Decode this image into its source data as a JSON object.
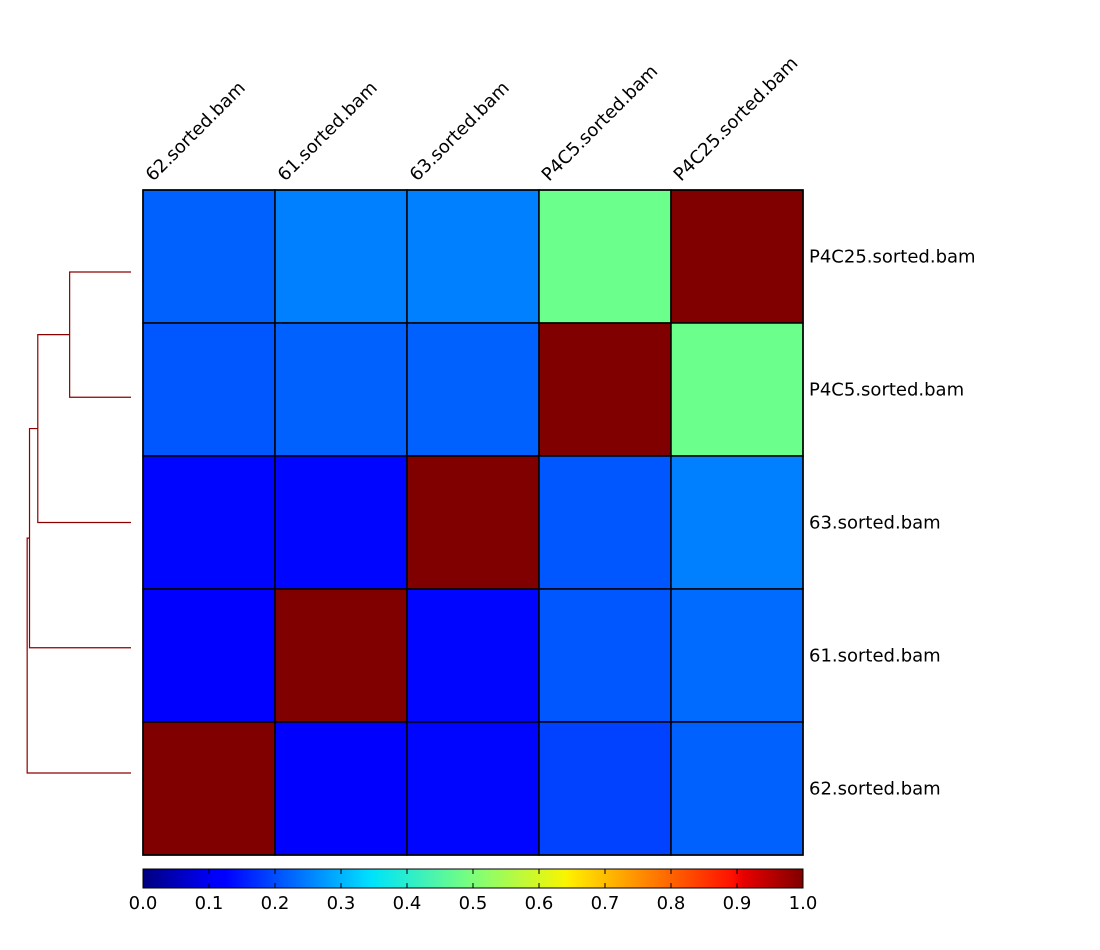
{
  "chart_data": {
    "type": "heatmap",
    "title": "",
    "columns": [
      "62.sorted.bam",
      "61.sorted.bam",
      "63.sorted.bam",
      "P4C5.sorted.bam",
      "P4C25.sorted.bam"
    ],
    "rows": [
      "P4C25.sorted.bam",
      "P4C5.sorted.bam",
      "63.sorted.bam",
      "61.sorted.bam",
      "62.sorted.bam"
    ],
    "values": [
      [
        0.22,
        0.25,
        0.25,
        0.48,
        1.0
      ],
      [
        0.21,
        0.22,
        0.22,
        1.0,
        0.48
      ],
      [
        0.13,
        0.13,
        1.0,
        0.21,
        0.25
      ],
      [
        0.11,
        1.0,
        0.13,
        0.21,
        0.23
      ],
      [
        1.0,
        0.11,
        0.13,
        0.19,
        0.22
      ]
    ],
    "colorscale": "jet",
    "colorbar": {
      "range": [
        0.0,
        1.0
      ],
      "ticks": [
        "0.0",
        "0.1",
        "0.2",
        "0.3",
        "0.4",
        "0.5",
        "0.6",
        "0.7",
        "0.8",
        "0.9",
        "1.0"
      ]
    },
    "dendrogram": {
      "side": "left",
      "color": "#8b0000",
      "merges": [
        {
          "left": "P4C25.sorted.bam",
          "right": "P4C5.sorted.bam",
          "height": 0.52
        },
        {
          "left": "P4C25.sorted.bam+P4C5.sorted.bam",
          "right": "63.sorted.bam",
          "height": 0.79
        },
        {
          "left": "P4C25.sorted.bam+P4C5.sorted.bam+63.sorted.bam",
          "right": "61.sorted.bam",
          "height": 0.86
        },
        {
          "left": "P4C25.sorted.bam+P4C5.sorted.bam+63.sorted.bam+61.sorted.bam",
          "right": "62.sorted.bam",
          "height": 0.88
        }
      ]
    },
    "grid": true
  }
}
